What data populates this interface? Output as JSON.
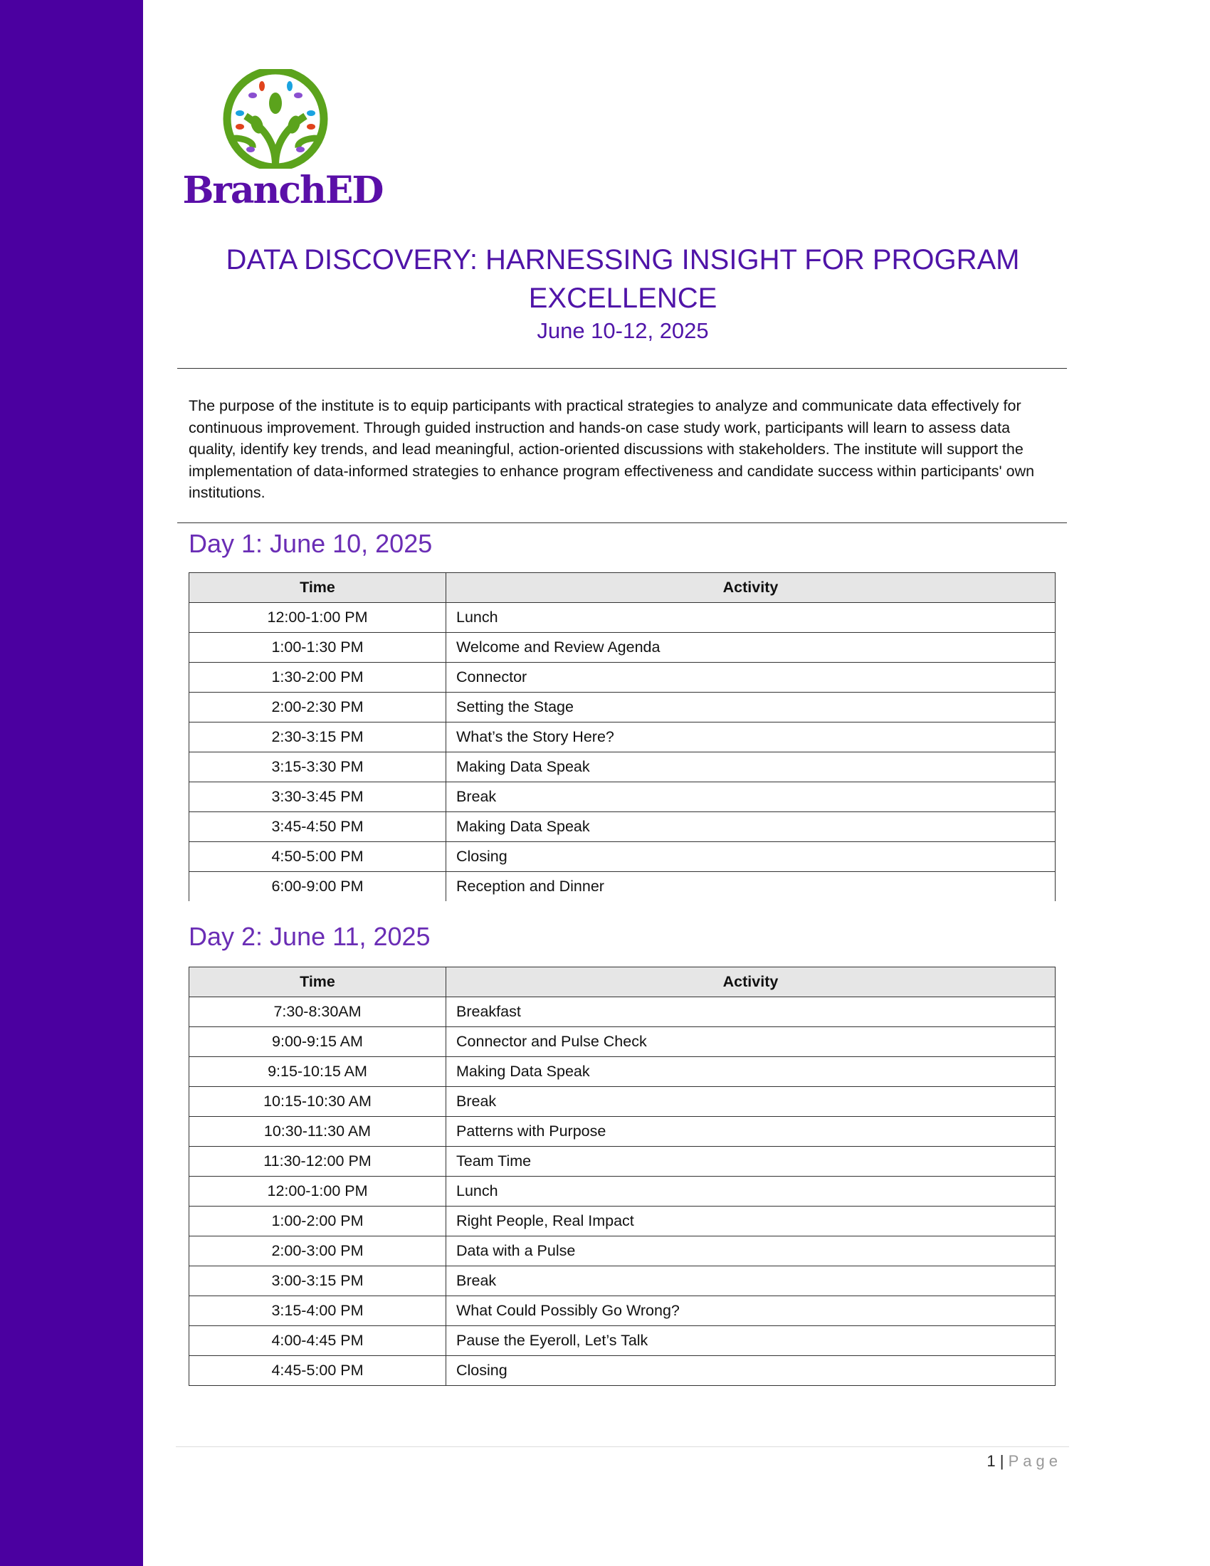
{
  "brand": {
    "name": "BranchED",
    "colors": {
      "sidebar": "#4b00a0",
      "green": "#5ba31c",
      "purple": "#5a0fa8"
    }
  },
  "title": "DATA DISCOVERY: HARNESSING INSIGHT FOR PROGRAM EXCELLENCE",
  "date": "June 10-12, 2025",
  "intro": "The purpose of the institute is to equip participants with practical strategies to analyze and communicate data effectively for continuous improvement. Through guided instruction and hands-on case study work, participants will learn to assess data quality, identify key trends, and lead meaningful, action-oriented discussions with stakeholders. The institute will support the implementation of data-informed strategies to enhance program effectiveness and candidate success within participants' own institutions.",
  "columns": {
    "time": "Time",
    "activity": "Activity"
  },
  "days": [
    {
      "heading": "Day 1: June 10, 2025",
      "rows": [
        [
          "12:00-1:00 PM",
          "Lunch"
        ],
        [
          "1:00-1:30 PM",
          "Welcome and Review Agenda"
        ],
        [
          "1:30-2:00 PM",
          "Connector"
        ],
        [
          "2:00-2:30 PM",
          "Setting the Stage"
        ],
        [
          "2:30-3:15 PM",
          "What’s the Story Here?"
        ],
        [
          "3:15-3:30 PM",
          "Making Data Speak"
        ],
        [
          "3:30-3:45 PM",
          "Break"
        ],
        [
          "3:45-4:50 PM",
          "Making Data Speak"
        ],
        [
          "4:50-5:00 PM",
          "Closing"
        ],
        [
          "6:00-9:00 PM",
          "Reception and Dinner"
        ]
      ]
    },
    {
      "heading": "Day 2: June 11, 2025",
      "rows": [
        [
          "7:30-8:30AM",
          "Breakfast"
        ],
        [
          "9:00-9:15 AM",
          "Connector and Pulse Check"
        ],
        [
          "9:15-10:15 AM",
          "Making Data Speak"
        ],
        [
          "10:15-10:30 AM",
          "Break"
        ],
        [
          "10:30-11:30 AM",
          "Patterns with Purpose"
        ],
        [
          "11:30-12:00 PM",
          "Team Time"
        ],
        [
          "12:00-1:00 PM",
          "Lunch"
        ],
        [
          "1:00-2:00 PM",
          "Right People, Real Impact"
        ],
        [
          "2:00-3:00 PM",
          "Data with a Pulse"
        ],
        [
          "3:00-3:15 PM",
          "Break"
        ],
        [
          "3:15-4:00 PM",
          "What Could Possibly Go Wrong?"
        ],
        [
          "4:00-4:45 PM",
          "Pause the Eyeroll, Let’s Talk"
        ],
        [
          "4:45-5:00 PM",
          "Closing"
        ]
      ]
    }
  ],
  "footer": {
    "page_number": "1",
    "separator": "|",
    "page_label": "Page"
  }
}
